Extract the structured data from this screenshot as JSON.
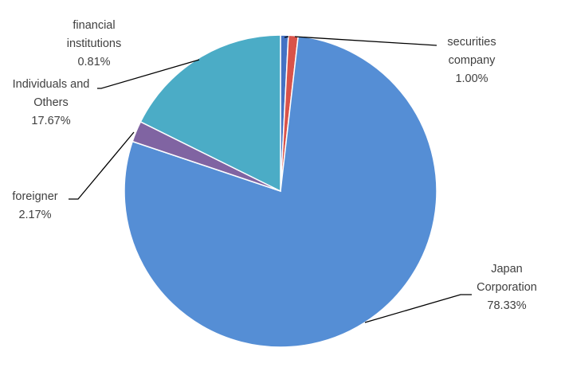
{
  "chart_data": {
    "type": "pie",
    "title": "",
    "start_angle_deg": 0,
    "direction": "clockwise",
    "legend": "none",
    "slices": [
      {
        "label_lines": [
          "financial",
          "institutions"
        ],
        "value": 0.81,
        "value_label": "0.81%",
        "color": "#4472C4"
      },
      {
        "label_lines": [
          "securities",
          "company"
        ],
        "value": 1.0,
        "value_label": "1.00%",
        "color": "#D9534A"
      },
      {
        "label_lines": [
          "Japan",
          "Corporation"
        ],
        "value": 78.33,
        "value_label": "78.33%",
        "color": "#558ED5"
      },
      {
        "label_lines": [
          "foreigner"
        ],
        "value": 2.17,
        "value_label": "2.17%",
        "color": "#8064A2"
      },
      {
        "label_lines": [
          "Individuals and",
          "Others"
        ],
        "value": 17.67,
        "value_label": "17.67%",
        "color": "#4BACC6"
      }
    ]
  }
}
